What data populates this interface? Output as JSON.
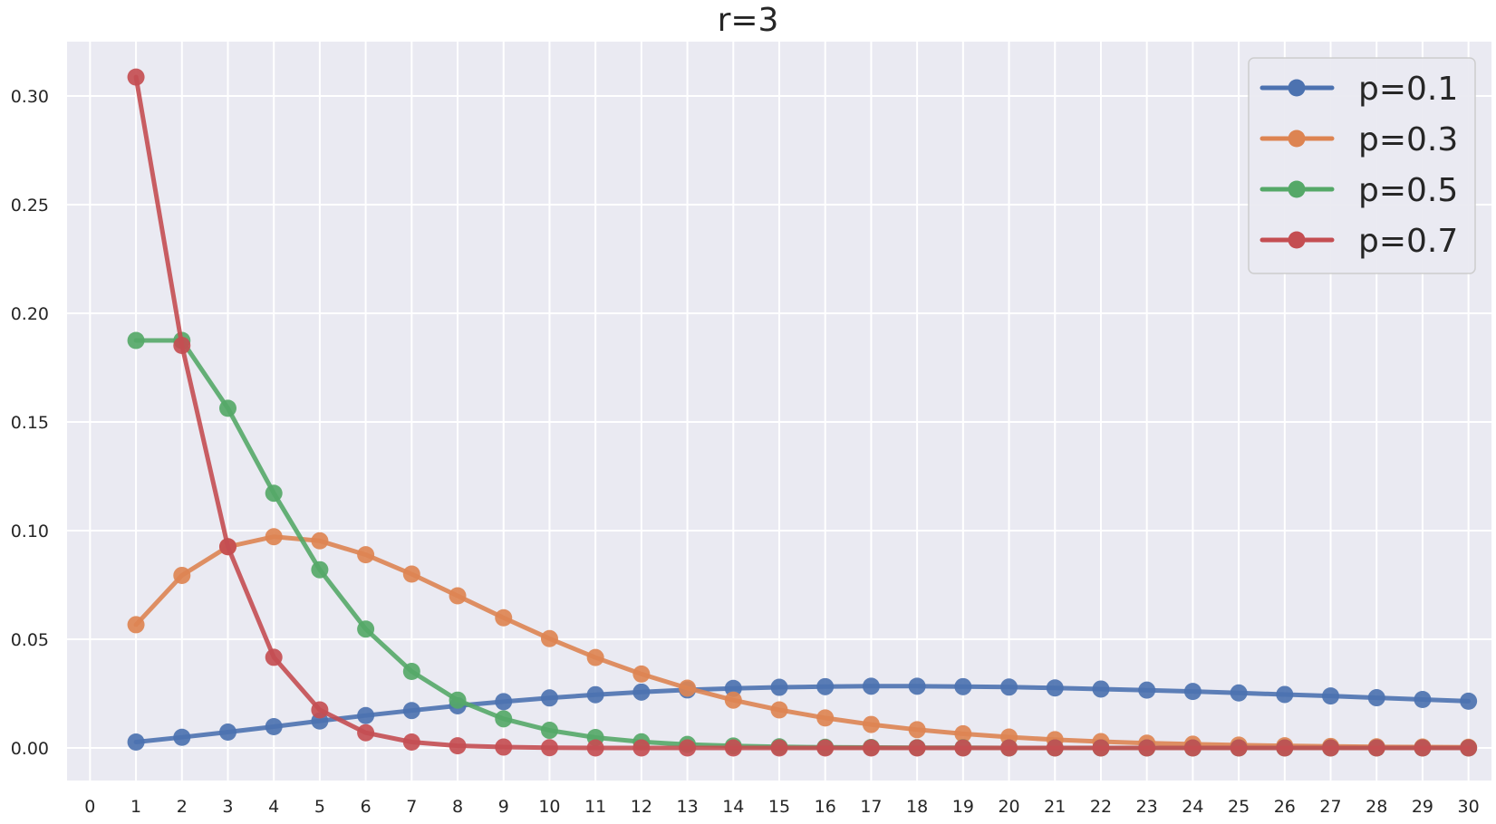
{
  "chart_data": {
    "type": "line",
    "title": "r=3",
    "xlabel": "",
    "ylabel": "",
    "xlim": [
      -0.5,
      30.5
    ],
    "ylim": [
      -0.015,
      0.325
    ],
    "x_ticks": [
      0,
      1,
      2,
      3,
      4,
      5,
      6,
      7,
      8,
      9,
      10,
      11,
      12,
      13,
      14,
      15,
      16,
      17,
      18,
      19,
      20,
      21,
      22,
      23,
      24,
      25,
      26,
      27,
      28,
      29,
      30
    ],
    "y_ticks": [
      "0.00",
      "0.05",
      "0.10",
      "0.15",
      "0.20",
      "0.25",
      "0.30"
    ],
    "grid": true,
    "legend_position": "top-right",
    "x": [
      1,
      2,
      3,
      4,
      5,
      6,
      7,
      8,
      9,
      10,
      11,
      12,
      13,
      14,
      15,
      16,
      17,
      18,
      19,
      20,
      21,
      22,
      23,
      24,
      25,
      26,
      27,
      28,
      29,
      30
    ],
    "series": [
      {
        "name": "p=0.1",
        "color": "#4c72b0",
        "values": [
          0.0027,
          0.0049,
          0.0073,
          0.0098,
          0.0124,
          0.0149,
          0.0172,
          0.0194,
          0.0213,
          0.023,
          0.0245,
          0.0257,
          0.0267,
          0.0274,
          0.0279,
          0.0282,
          0.0284,
          0.0284,
          0.0282,
          0.028,
          0.0276,
          0.0271,
          0.0266,
          0.026,
          0.0253,
          0.0246,
          0.0239,
          0.0231,
          0.0223,
          0.0215
        ]
      },
      {
        "name": "p=0.3",
        "color": "#dd8452",
        "values": [
          0.0567,
          0.0794,
          0.0926,
          0.0972,
          0.0953,
          0.0889,
          0.08,
          0.07,
          0.0599,
          0.0503,
          0.0416,
          0.034,
          0.0275,
          0.022,
          0.0175,
          0.0138,
          0.0108,
          0.0084,
          0.0065,
          0.005,
          0.0038,
          0.0029,
          0.0022,
          0.0017,
          0.0013,
          0.001,
          0.0007,
          0.0005,
          0.0004,
          0.0003
        ]
      },
      {
        "name": "p=0.5",
        "color": "#55a868",
        "values": [
          0.1875,
          0.1875,
          0.1563,
          0.1172,
          0.082,
          0.0547,
          0.0352,
          0.022,
          0.0134,
          0.0081,
          0.0048,
          0.0028,
          0.0016,
          0.0009,
          0.0005,
          0.0003,
          0.0002,
          0.0001,
          0.0001,
          0.0,
          0.0,
          0.0,
          0.0,
          0.0,
          0.0,
          0.0,
          0.0,
          0.0,
          0.0,
          0.0
        ]
      },
      {
        "name": "p=0.7",
        "color": "#c44e52",
        "values": [
          0.3087,
          0.1852,
          0.0926,
          0.0417,
          0.0175,
          0.007,
          0.0027,
          0.001,
          0.0004,
          0.0001,
          0.0,
          0.0,
          0.0,
          0.0,
          0.0,
          0.0,
          0.0,
          0.0,
          0.0,
          0.0,
          0.0,
          0.0,
          0.0,
          0.0,
          0.0,
          0.0,
          0.0,
          0.0,
          0.0,
          0.0
        ]
      }
    ]
  }
}
